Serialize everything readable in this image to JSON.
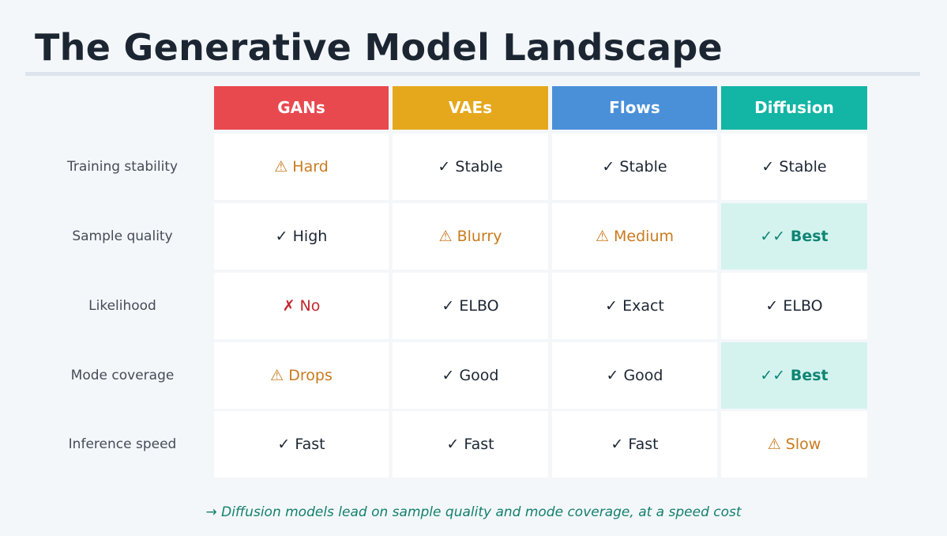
{
  "title": "The Generative Model Landscape",
  "columns": [
    {
      "label": "GANs",
      "color": "#e8494f"
    },
    {
      "label": "VAEs",
      "color": "#e5a81d"
    },
    {
      "label": "Flows",
      "color": "#4a90d9"
    },
    {
      "label": "Diffusion",
      "color": "#13b5a5"
    }
  ],
  "rows": [
    {
      "label": "Training stability",
      "cells": [
        {
          "text": "⚠ Hard",
          "status": "warn"
        },
        {
          "text": "✓ Stable",
          "status": "ok"
        },
        {
          "text": "✓ Stable",
          "status": "ok"
        },
        {
          "text": "✓ Stable",
          "status": "ok"
        }
      ]
    },
    {
      "label": "Sample quality",
      "cells": [
        {
          "text": "✓ High",
          "status": "ok"
        },
        {
          "text": "⚠ Blurry",
          "status": "warn"
        },
        {
          "text": "⚠ Medium",
          "status": "warn"
        },
        {
          "text": "✓✓ Best",
          "status": "best"
        }
      ]
    },
    {
      "label": "Likelihood",
      "cells": [
        {
          "text": "✗ No",
          "status": "bad"
        },
        {
          "text": "✓ ELBO",
          "status": "ok"
        },
        {
          "text": "✓ Exact",
          "status": "ok"
        },
        {
          "text": "✓ ELBO",
          "status": "ok"
        }
      ]
    },
    {
      "label": "Mode coverage",
      "cells": [
        {
          "text": "⚠ Drops",
          "status": "warn"
        },
        {
          "text": "✓ Good",
          "status": "ok"
        },
        {
          "text": "✓ Good",
          "status": "ok"
        },
        {
          "text": "✓✓ Best",
          "status": "best"
        }
      ]
    },
    {
      "label": "Inference speed",
      "cells": [
        {
          "text": "✓ Fast",
          "status": "ok"
        },
        {
          "text": "✓ Fast",
          "status": "ok"
        },
        {
          "text": "✓ Fast",
          "status": "ok"
        },
        {
          "text": "⚠ Slow",
          "status": "warn"
        }
      ]
    }
  ],
  "footnote": "→ Diffusion models lead on sample quality and mode coverage, at a speed cost"
}
